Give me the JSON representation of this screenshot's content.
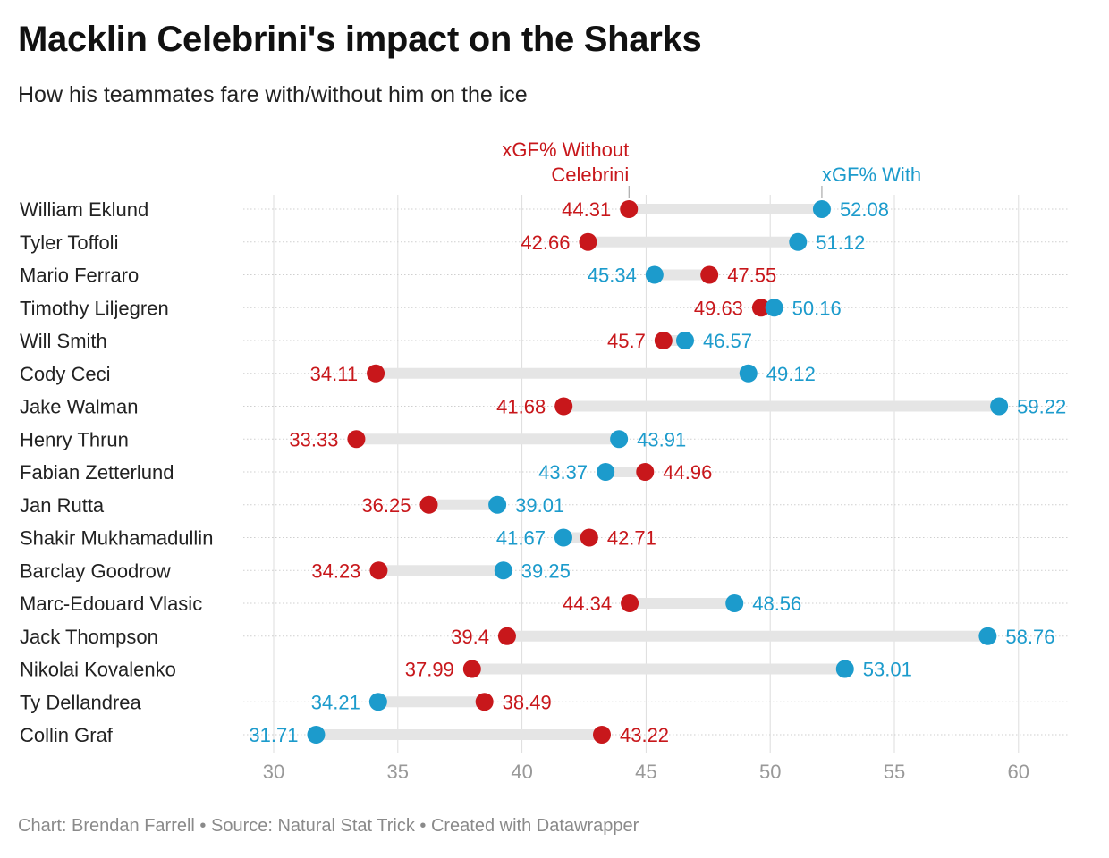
{
  "title": "Macklin Celebrini's impact on the Sharks",
  "subtitle": "How his teammates fare with/without him on the ice",
  "footer": "Chart: Brendan Farrell • Source: Natural Stat Trick • Created with Datawrapper",
  "colors": {
    "without": "#c8171b",
    "with": "#1c9bcc",
    "range_bar": "#e5e5e5",
    "grid": "#dddddd",
    "tick_label": "#999999",
    "name_label": "#222222"
  },
  "chart_data": {
    "type": "dot-range",
    "title": "Macklin Celebrini's impact on the Sharks",
    "subtitle": "How his teammates fare with/without him on the ice",
    "xlim": [
      28.5,
      62
    ],
    "xticks": [
      30,
      35,
      40,
      45,
      50,
      55,
      60
    ],
    "legend": {
      "without_label_line1": "xGF% Without",
      "without_label_line2": "Celebrini",
      "with_label": "xGF% With",
      "placement": "above first row"
    },
    "series": [
      {
        "name": "xGF% Without Celebrini",
        "key": "without"
      },
      {
        "name": "xGF% With",
        "key": "with"
      }
    ],
    "rows": [
      {
        "player": "William Eklund",
        "without": 44.31,
        "with": 52.08
      },
      {
        "player": "Tyler Toffoli",
        "without": 42.66,
        "with": 51.12
      },
      {
        "player": "Mario Ferraro",
        "without": 47.55,
        "with": 45.34
      },
      {
        "player": "Timothy Liljegren",
        "without": 49.63,
        "with": 50.16
      },
      {
        "player": "Will Smith",
        "without": 45.7,
        "with": 46.57
      },
      {
        "player": "Cody Ceci",
        "without": 34.11,
        "with": 49.12
      },
      {
        "player": "Jake Walman",
        "without": 41.68,
        "with": 59.22
      },
      {
        "player": "Henry Thrun",
        "without": 33.33,
        "with": 43.91
      },
      {
        "player": "Fabian Zetterlund",
        "without": 44.96,
        "with": 43.37
      },
      {
        "player": "Jan Rutta",
        "without": 36.25,
        "with": 39.01
      },
      {
        "player": "Shakir Mukhamadullin",
        "without": 42.71,
        "with": 41.67
      },
      {
        "player": "Barclay Goodrow",
        "without": 34.23,
        "with": 39.25
      },
      {
        "player": "Marc-Edouard Vlasic",
        "without": 44.34,
        "with": 48.56
      },
      {
        "player": "Jack Thompson",
        "without": 39.4,
        "with": 58.76
      },
      {
        "player": "Nikolai Kovalenko",
        "without": 37.99,
        "with": 53.01
      },
      {
        "player": "Ty Dellandrea",
        "without": 38.49,
        "with": 34.21
      },
      {
        "player": "Collin Graf",
        "without": 43.22,
        "with": 31.71
      }
    ]
  }
}
